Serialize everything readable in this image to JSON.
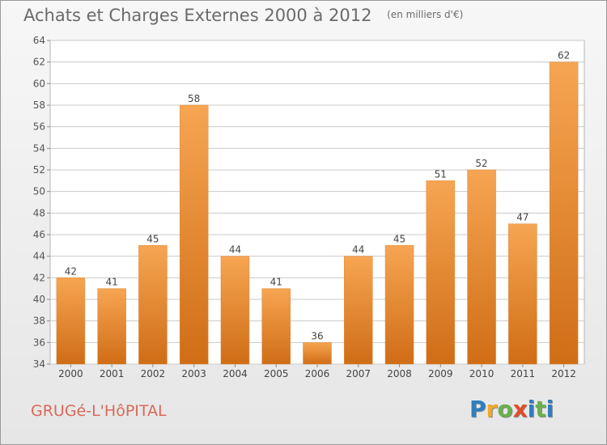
{
  "header": {
    "title": "Achats et Charges Externes 2000 à 2012",
    "subtitle": "(en milliers d'€)"
  },
  "footer": {
    "place": "GRUGé-L'HôPITAL",
    "logo": [
      "P",
      "r",
      "o",
      "x",
      "i",
      "t",
      "i"
    ]
  },
  "colors": {
    "bar_light": "#f6a552",
    "bar_dark": "#d06d16",
    "grid": "#c9c9c9",
    "logo_letters": [
      "#2d7fc1",
      "#f0a92a",
      "#6ab04c",
      "#e04e2b",
      "#2d7fc1",
      "#6ab04c",
      "#2d7fc1"
    ]
  },
  "chart_data": {
    "type": "bar",
    "categories": [
      "2000",
      "2001",
      "2002",
      "2003",
      "2004",
      "2005",
      "2006",
      "2007",
      "2008",
      "2009",
      "2010",
      "2011",
      "2012"
    ],
    "values": [
      42,
      41,
      45,
      58,
      44,
      41,
      36,
      44,
      45,
      51,
      52,
      47,
      62
    ],
    "title": "Achats et Charges Externes 2000 à 2012",
    "subtitle": "(en milliers d'€)",
    "xlabel": "",
    "ylabel": "",
    "ylim": [
      34,
      64
    ],
    "yticks": [
      34,
      36,
      38,
      40,
      42,
      44,
      46,
      48,
      50,
      52,
      54,
      56,
      58,
      60,
      62,
      64
    ],
    "grid": true,
    "data_labels": true
  }
}
